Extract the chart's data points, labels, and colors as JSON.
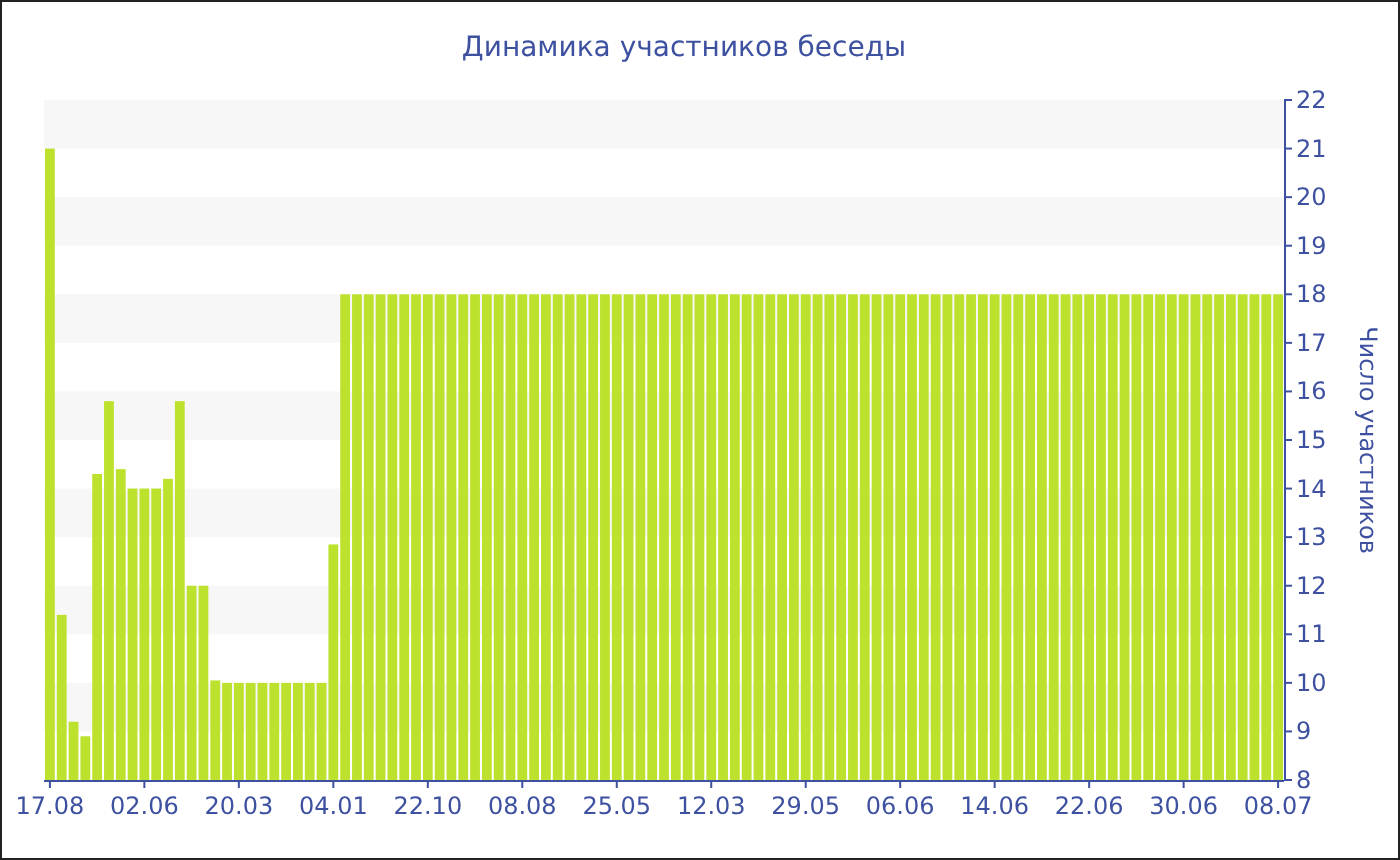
{
  "chart_data": {
    "type": "bar",
    "title": "Динамика участников беседы",
    "ylabel": "Число участников",
    "categories": [
      "17.08",
      null,
      null,
      null,
      null,
      null,
      null,
      null,
      "02.06",
      null,
      null,
      null,
      null,
      null,
      null,
      null,
      "20.03",
      null,
      null,
      null,
      null,
      null,
      null,
      null,
      "04.01",
      null,
      null,
      null,
      null,
      null,
      null,
      null,
      "22.10",
      null,
      null,
      null,
      null,
      null,
      null,
      null,
      "08.08",
      null,
      null,
      null,
      null,
      null,
      null,
      null,
      "25.05",
      null,
      null,
      null,
      null,
      null,
      null,
      null,
      "12.03",
      null,
      null,
      null,
      null,
      null,
      null,
      null,
      "29.05",
      null,
      null,
      null,
      null,
      null,
      null,
      null,
      "06.06",
      null,
      null,
      null,
      null,
      null,
      null,
      null,
      "14.06",
      null,
      null,
      null,
      null,
      null,
      null,
      null,
      "22.06",
      null,
      null,
      null,
      null,
      null,
      null,
      null,
      "30.06",
      null,
      null,
      null,
      null,
      null,
      null,
      null,
      "08.07"
    ],
    "values": [
      21,
      11.4,
      9.2,
      8.9,
      14.3,
      15.8,
      14.4,
      14,
      14,
      14,
      14.2,
      15.8,
      12,
      12,
      10.05,
      10,
      10,
      10,
      10,
      10,
      10,
      10,
      10,
      10,
      12.85,
      18,
      18,
      18,
      18,
      18,
      18,
      18,
      18,
      18,
      18,
      18,
      18,
      18,
      18,
      18,
      18,
      18,
      18,
      18,
      18,
      18,
      18,
      18,
      18,
      18,
      18,
      18,
      18,
      18,
      18,
      18,
      18,
      18,
      18,
      18,
      18,
      18,
      18,
      18,
      18,
      18,
      18,
      18,
      18,
      18,
      18,
      18,
      18,
      18,
      18,
      18,
      18,
      18,
      18,
      18,
      18,
      18,
      18,
      18,
      18,
      18,
      18,
      18,
      18,
      18,
      18,
      18,
      18,
      18,
      18,
      18,
      18,
      18,
      18,
      18,
      18,
      18,
      18,
      18,
      18
    ],
    "color": "#bde22d",
    "ylim": [
      8,
      22
    ],
    "yticks": [
      8,
      9,
      10,
      11,
      12,
      13,
      14,
      15,
      16,
      17,
      18,
      19,
      20,
      21,
      22
    ]
  }
}
